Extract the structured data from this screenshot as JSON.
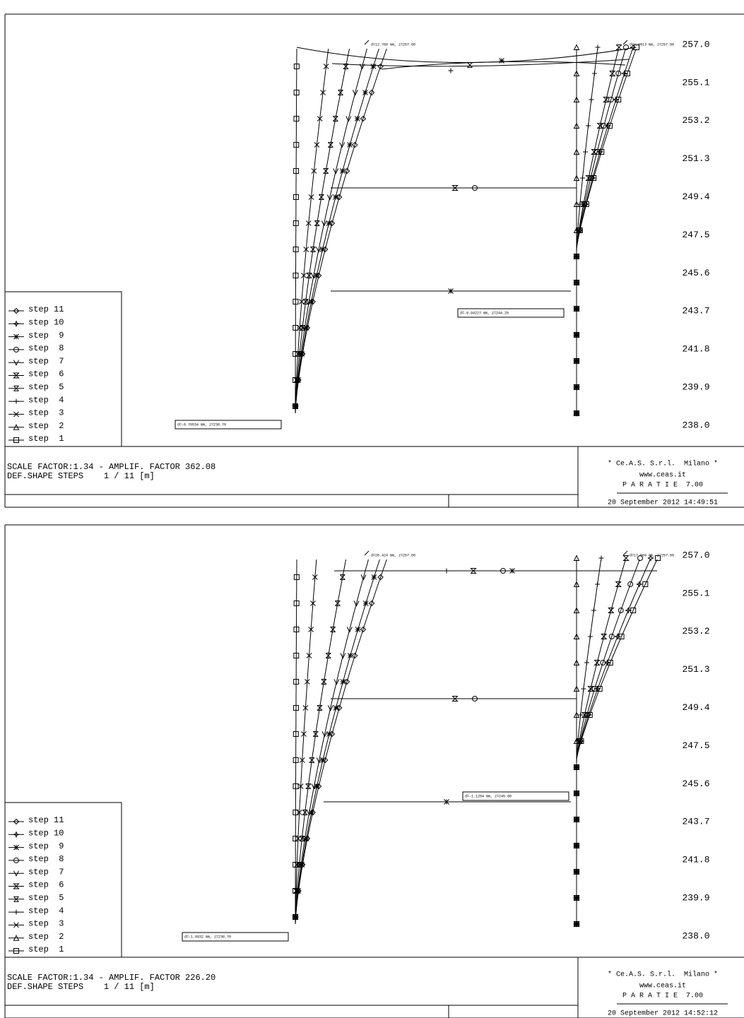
{
  "panels": [
    {
      "annotations": [
        "d=12.760 mm, z=257.00",
        "d=7.9013 mm, z=257.00",
        "d=-0.94227 mm, z=244.25",
        "d=-0.76534 mm, z=238.70"
      ],
      "elevations": [
        "257.0",
        "255.1",
        "253.2",
        "251.3",
        "249.4",
        "247.5",
        "245.6",
        "243.7",
        "241.8",
        "239.9",
        "238.0"
      ],
      "legend": [
        "step 11",
        "step 10",
        "step  9",
        "step  8",
        "step  7",
        "step  6",
        "step  5",
        "step  4",
        "step  3",
        "step  2",
        "step  1"
      ],
      "footer": {
        "scale": "SCALE FACTOR:1.34 - AMPLIF. FACTOR 362.08",
        "steps": "DEF.SHAPE STEPS    1 / 11 [m]"
      },
      "stamp": {
        "company": "* Ce.A.S. S.r.l.  Milano *",
        "website": "www.ceas.it",
        "program": "P A R A T I E  7.00",
        "date": "20 September 2012 14:49:51"
      }
    },
    {
      "annotations": [
        "d=20.424 mm, z=257.00",
        "d=17.504 mm, z=257.00",
        "d=-1.1204 mm, z=245.80",
        "d=-1.0932 mm, z=238.70"
      ],
      "elevations": [
        "257.0",
        "255.1",
        "253.2",
        "251.3",
        "249.4",
        "247.5",
        "245.6",
        "243.7",
        "241.8",
        "239.9",
        "238.0"
      ],
      "legend": [
        "step 11",
        "step 10",
        "step  9",
        "step  8",
        "step  7",
        "step  6",
        "step  5",
        "step  4",
        "step  3",
        "step  2",
        "step  1"
      ],
      "footer": {
        "scale": "SCALE FACTOR:1.34 - AMPLIF. FACTOR 226.20",
        "steps": "DEF.SHAPE STEPS    1 / 11 [m]"
      },
      "stamp": {
        "company": "* Ce.A.S. S.r.l.  Milano *",
        "website": "www.ceas.it",
        "program": "P A R A T I E  7.00",
        "date": "20 September 2012 14:52:12"
      }
    }
  ]
}
